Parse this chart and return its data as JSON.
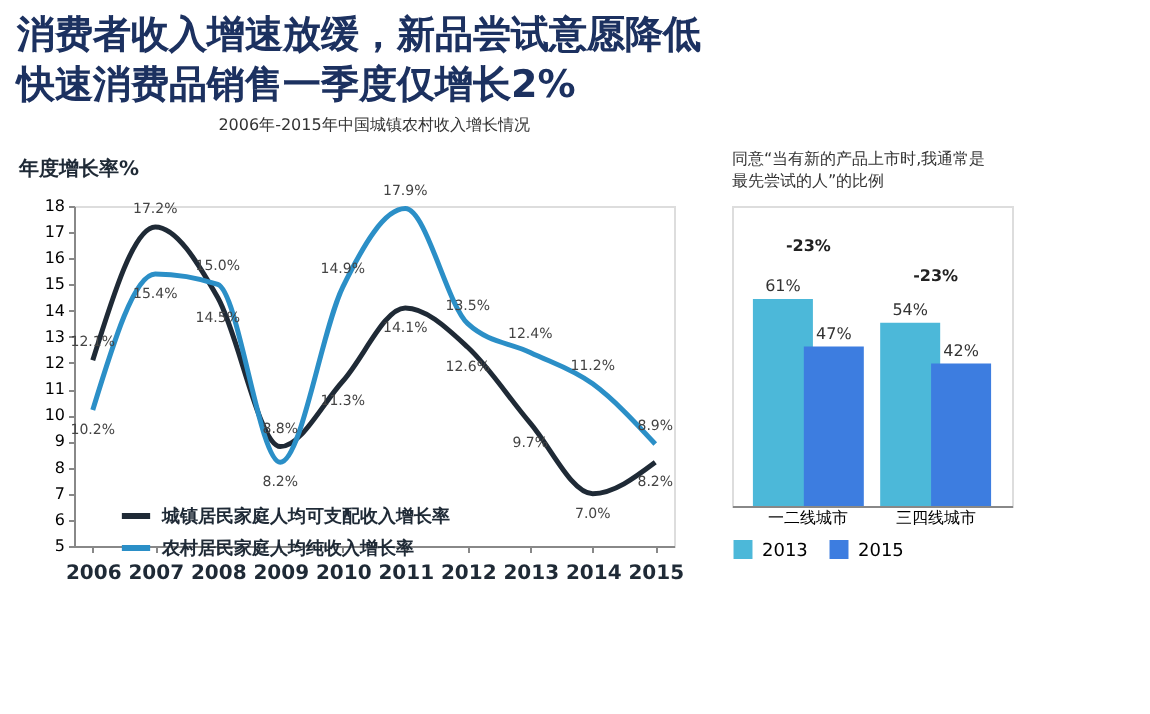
{
  "chart_data": [
    {
      "type": "line",
      "title": "消费者收入增速放缓，新品尝试意愿降低",
      "subtitle": "快速消费品销售一季度仅增长2%",
      "annotations": [
        "2006年-2015年中国城镇农村收入增长情况"
      ],
      "ylabel": "年度增长率%",
      "categories": [
        "2006",
        "2007",
        "2008",
        "2009",
        "2010",
        "2011",
        "2012",
        "2013",
        "2014",
        "2015"
      ],
      "series": [
        {
          "name": "城镇居民家庭人均可支配收入增长率",
          "color": "#1f2a36",
          "values": [
            12.1,
            17.2,
            14.5,
            8.8,
            11.3,
            14.1,
            12.6,
            9.7,
            7.0,
            8.2
          ],
          "value_labels": [
            "12.1%",
            "17.2%",
            "14.5%",
            "8.8%",
            "11.3%",
            "14.1%",
            "12.6%",
            "9.7%",
            "7.0%",
            "8.2%"
          ]
        },
        {
          "name": "农村居民家庭人均纯收入增长率",
          "color": "#2b8fc7",
          "values": [
            10.2,
            15.4,
            15.0,
            8.2,
            14.9,
            17.9,
            13.5,
            12.4,
            11.2,
            8.9
          ],
          "value_labels": [
            "10.2%",
            "15.4%",
            "15.0%",
            "8.2%",
            "14.9%",
            "17.9%",
            "13.5%",
            "12.4%",
            "11.2%",
            "8.9%"
          ]
        }
      ],
      "ylim": [
        5,
        18
      ],
      "yticks": [
        5,
        6,
        7,
        8,
        9,
        10,
        11,
        12,
        13,
        14,
        15,
        16,
        17,
        18
      ],
      "legend": "bottom left",
      "grid": false,
      "data_labels": true
    },
    {
      "type": "bar",
      "title": "同意“当有新的产品上市时,我通常是最先尝试的人”的比例",
      "categories": [
        "一二线城市",
        "三四线城市"
      ],
      "series": [
        {
          "name": "2013",
          "color": "#4cb8d9",
          "values": [
            61,
            54
          ],
          "value_labels": [
            "61%",
            "54%"
          ]
        },
        {
          "name": "2015",
          "color": "#3d7de0",
          "values": [
            47,
            42
          ],
          "value_labels": [
            "47%",
            "42%"
          ]
        }
      ],
      "annotations": [
        "-23%",
        "-23%"
      ],
      "legend": "bottom"
    }
  ]
}
